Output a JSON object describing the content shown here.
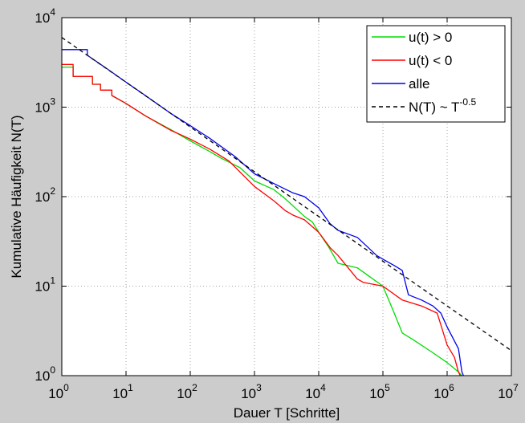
{
  "chart_data": {
    "type": "line",
    "xlabel": "Dauer T [Schritte]",
    "ylabel": "Kumulative Häufigkeit N(T)",
    "x_scale": "log",
    "y_scale": "log",
    "xlim": [
      1,
      10000000
    ],
    "ylim": [
      1,
      10000
    ],
    "grid": true,
    "legend_position": "top-right",
    "x_ticks": [
      {
        "value": 1,
        "base": "10",
        "exp": "0"
      },
      {
        "value": 10,
        "base": "10",
        "exp": "1"
      },
      {
        "value": 100,
        "base": "10",
        "exp": "2"
      },
      {
        "value": 1000,
        "base": "10",
        "exp": "3"
      },
      {
        "value": 10000,
        "base": "10",
        "exp": "4"
      },
      {
        "value": 100000,
        "base": "10",
        "exp": "5"
      },
      {
        "value": 1000000,
        "base": "10",
        "exp": "6"
      },
      {
        "value": 10000000,
        "base": "10",
        "exp": "7"
      }
    ],
    "y_ticks": [
      {
        "value": 1,
        "base": "10",
        "exp": "0"
      },
      {
        "value": 10,
        "base": "10",
        "exp": "1"
      },
      {
        "value": 100,
        "base": "10",
        "exp": "2"
      },
      {
        "value": 1000,
        "base": "10",
        "exp": "3"
      },
      {
        "value": 10000,
        "base": "10",
        "exp": "4"
      }
    ],
    "series": [
      {
        "name": "u(t) > 0",
        "color": "#00dd00",
        "style": "solid",
        "points": [
          [
            1,
            2800
          ],
          [
            1.5,
            2800
          ],
          [
            1.5,
            2200
          ],
          [
            3,
            2200
          ],
          [
            3,
            1800
          ],
          [
            4,
            1800
          ],
          [
            4,
            1550
          ],
          [
            6,
            1550
          ],
          [
            6,
            1350
          ],
          [
            10,
            1100
          ],
          [
            20,
            800
          ],
          [
            50,
            560
          ],
          [
            100,
            420
          ],
          [
            200,
            320
          ],
          [
            300,
            270
          ],
          [
            600,
            210
          ],
          [
            1000,
            150
          ],
          [
            2000,
            120
          ],
          [
            3000,
            95
          ],
          [
            6000,
            60
          ],
          [
            8000,
            52
          ],
          [
            10000,
            40
          ],
          [
            14000,
            28
          ],
          [
            20000,
            18
          ],
          [
            40000,
            16
          ],
          [
            60000,
            13
          ],
          [
            100000,
            10
          ],
          [
            150000,
            5
          ],
          [
            200000,
            3
          ],
          [
            300000,
            2.5
          ],
          [
            600000,
            1.8
          ],
          [
            1000000,
            1.4
          ],
          [
            1500000,
            1.1
          ],
          [
            1700000,
            1
          ]
        ]
      },
      {
        "name": "u(t) < 0",
        "color": "#ff0000",
        "style": "solid",
        "points": [
          [
            1,
            3000
          ],
          [
            1.5,
            3000
          ],
          [
            1.5,
            2200
          ],
          [
            3,
            2200
          ],
          [
            3,
            1800
          ],
          [
            4,
            1800
          ],
          [
            4,
            1550
          ],
          [
            6,
            1550
          ],
          [
            6,
            1350
          ],
          [
            10,
            1100
          ],
          [
            20,
            800
          ],
          [
            50,
            550
          ],
          [
            100,
            440
          ],
          [
            200,
            340
          ],
          [
            400,
            250
          ],
          [
            1000,
            130
          ],
          [
            2000,
            90
          ],
          [
            3000,
            70
          ],
          [
            4000,
            62
          ],
          [
            6000,
            55
          ],
          [
            10000,
            40
          ],
          [
            15000,
            27
          ],
          [
            20000,
            22
          ],
          [
            40000,
            12
          ],
          [
            50000,
            11
          ],
          [
            100000,
            10
          ],
          [
            200000,
            7
          ],
          [
            400000,
            6
          ],
          [
            700000,
            5
          ],
          [
            1000000,
            2.2
          ],
          [
            1300000,
            1.6
          ],
          [
            1500000,
            1.1
          ],
          [
            1600000,
            1
          ]
        ]
      },
      {
        "name": "alle",
        "color": "#0000ee",
        "style": "solid",
        "points": [
          [
            1,
            4400
          ],
          [
            2.5,
            4400
          ],
          [
            2.5,
            3800
          ],
          [
            5,
            2700
          ],
          [
            10,
            1900
          ],
          [
            20,
            1350
          ],
          [
            50,
            850
          ],
          [
            100,
            620
          ],
          [
            200,
            450
          ],
          [
            500,
            280
          ],
          [
            1000,
            180
          ],
          [
            2000,
            140
          ],
          [
            4000,
            110
          ],
          [
            6000,
            100
          ],
          [
            10000,
            75
          ],
          [
            15000,
            50
          ],
          [
            20000,
            42
          ],
          [
            40000,
            35
          ],
          [
            80000,
            22
          ],
          [
            100000,
            20
          ],
          [
            150000,
            17
          ],
          [
            200000,
            15
          ],
          [
            250000,
            8
          ],
          [
            400000,
            7
          ],
          [
            600000,
            6
          ],
          [
            800000,
            5
          ],
          [
            1000000,
            3.5
          ],
          [
            1500000,
            2
          ],
          [
            1700000,
            1.1
          ],
          [
            1800000,
            1
          ]
        ]
      },
      {
        "name": "N(T) ~ T",
        "superscript": "-0.5",
        "color": "#000000",
        "style": "dashed",
        "points": [
          [
            1,
            6000
          ],
          [
            10000000,
            1.9
          ]
        ]
      }
    ]
  }
}
